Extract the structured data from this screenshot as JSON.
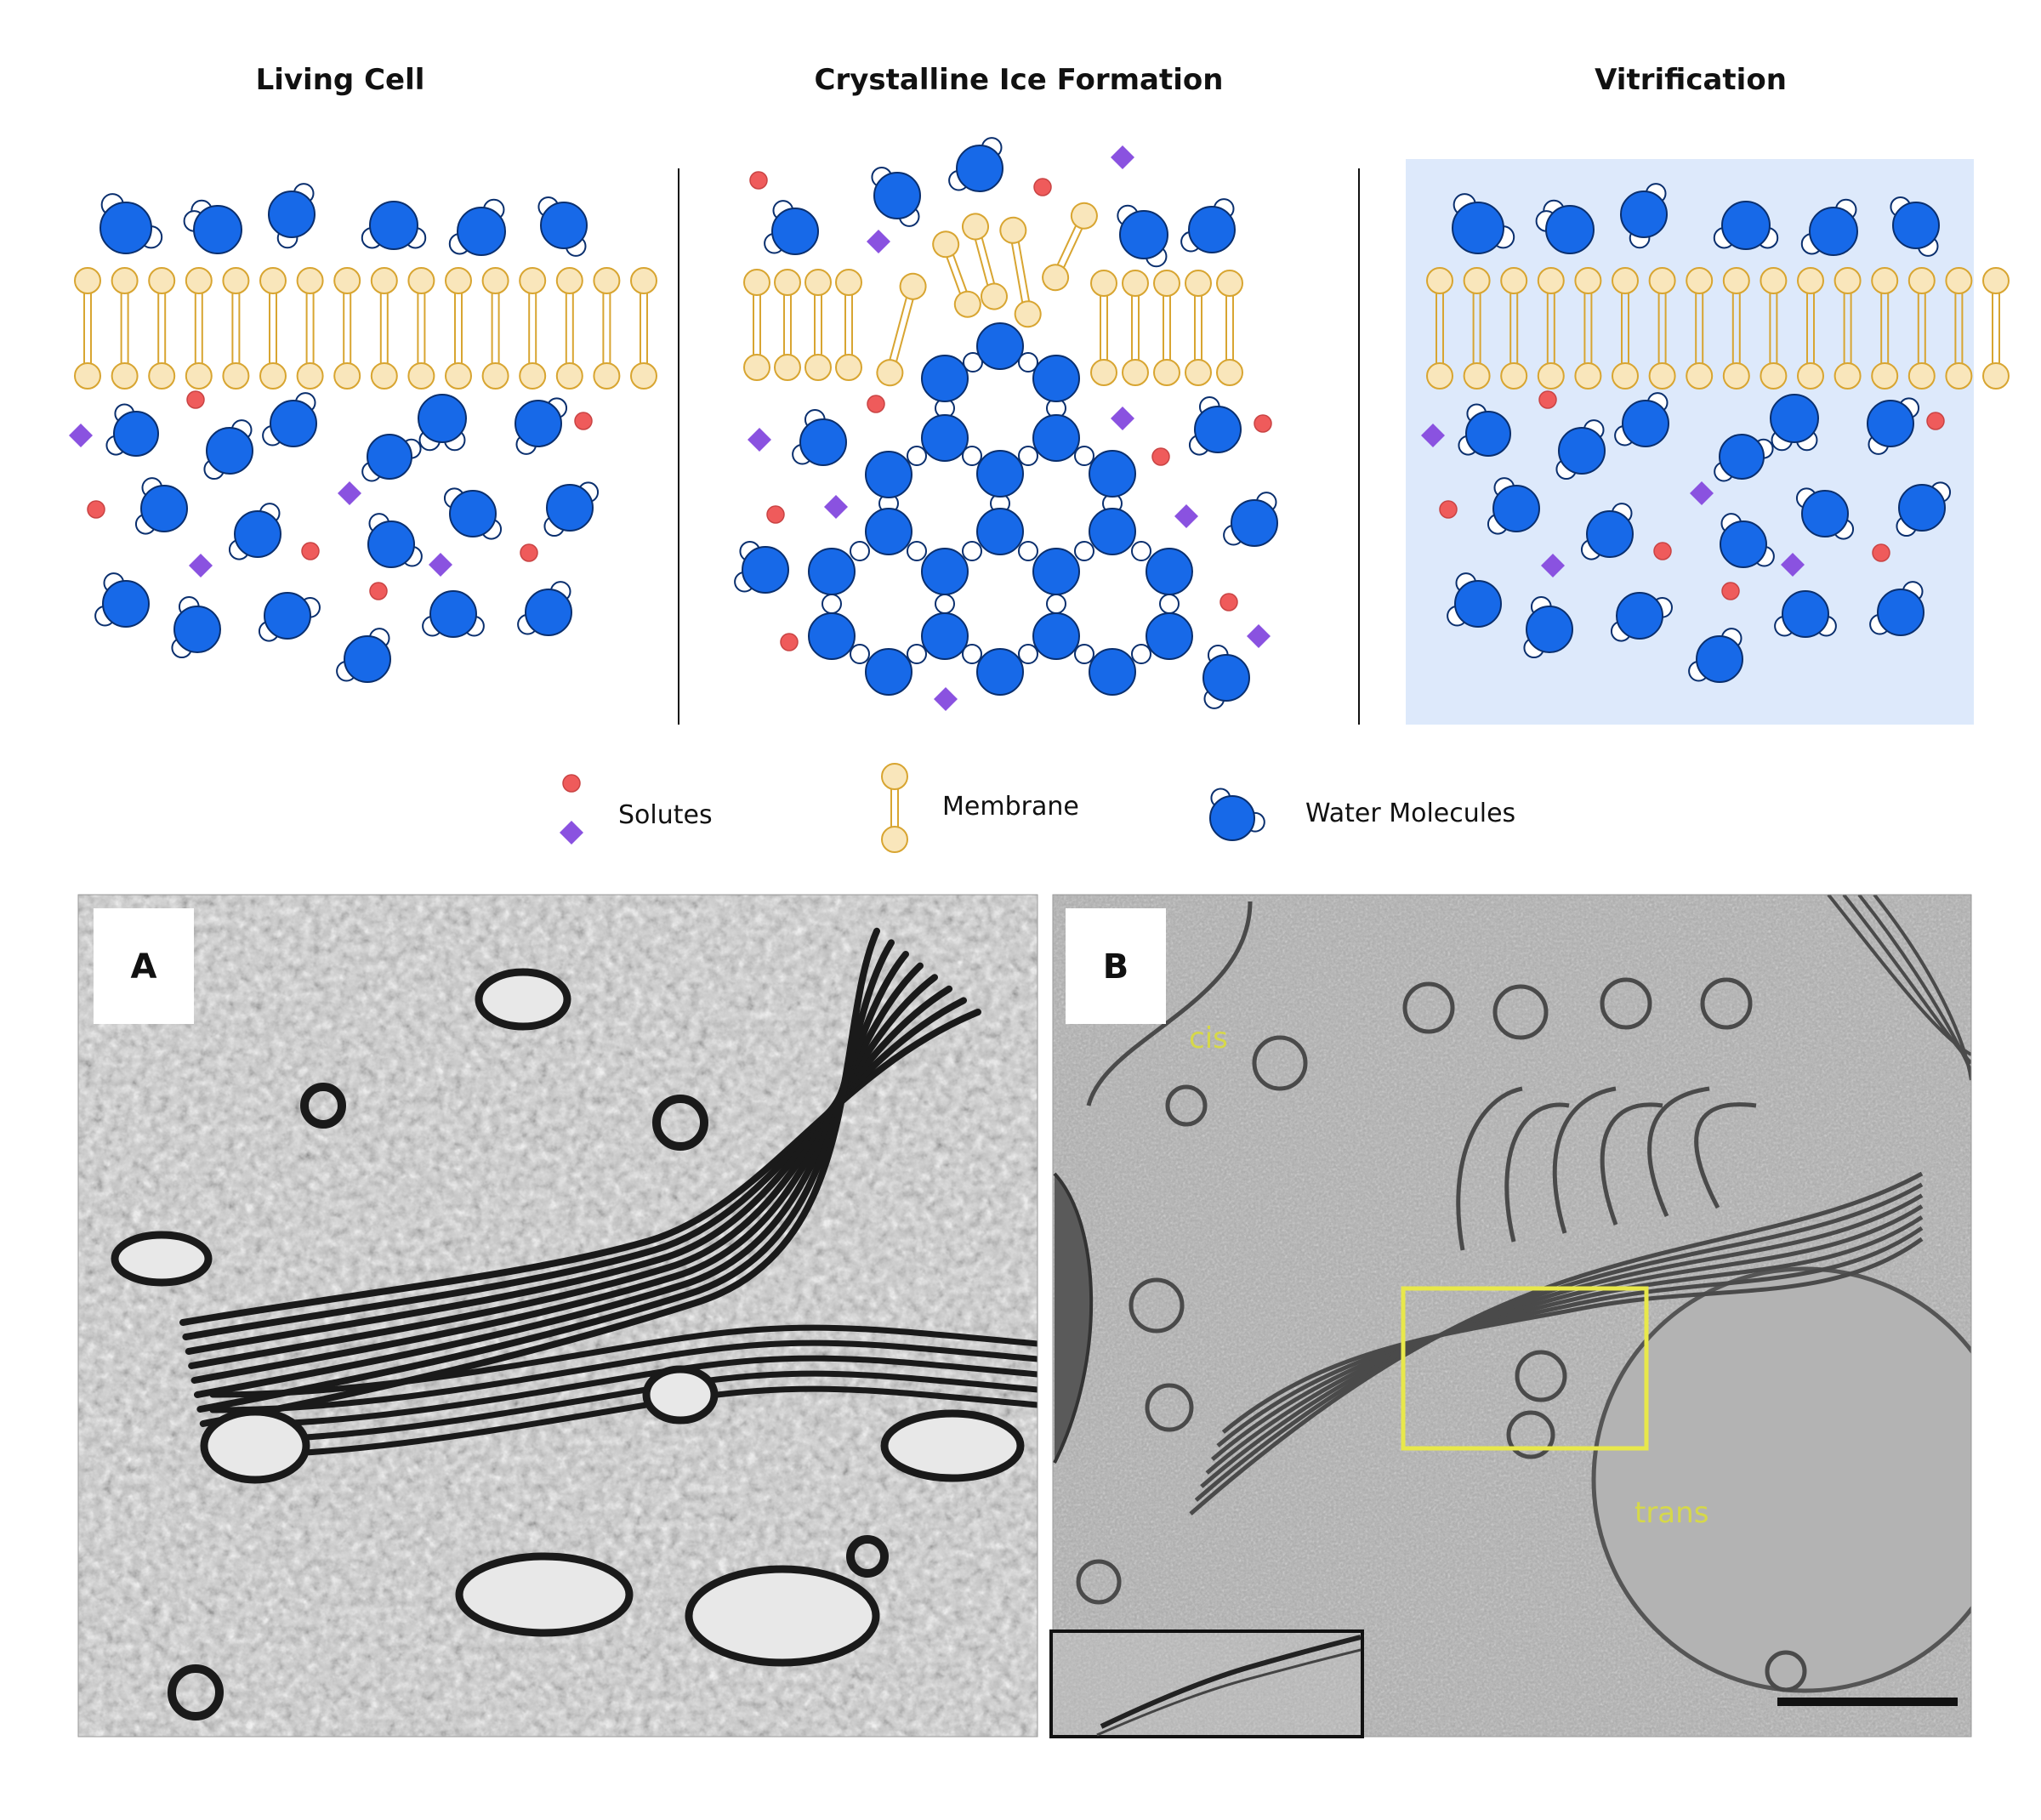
{
  "panels": [
    {
      "title": "Living Cell"
    },
    {
      "title": "Crystalline Ice Formation"
    },
    {
      "title": "Vitrification"
    }
  ],
  "legend": {
    "solutes": "Solutes",
    "membrane": "Membrane",
    "water": "Water Molecules"
  },
  "micrographs": {
    "a_label": "A",
    "b_label": "B",
    "cis": "cis",
    "trans": "trans"
  },
  "colors": {
    "water": "#1769e8",
    "water_stroke": "#0a2f6e",
    "hydrogen": "#ffffff",
    "solute_circle": "#ef5b5b",
    "solute_diamond": "#8a52e0",
    "membrane": "#f9e6bb",
    "membrane_stroke": "#d8a531",
    "vitrification_bg": "#dde9fb",
    "highlight_box": "#e8e84a"
  }
}
